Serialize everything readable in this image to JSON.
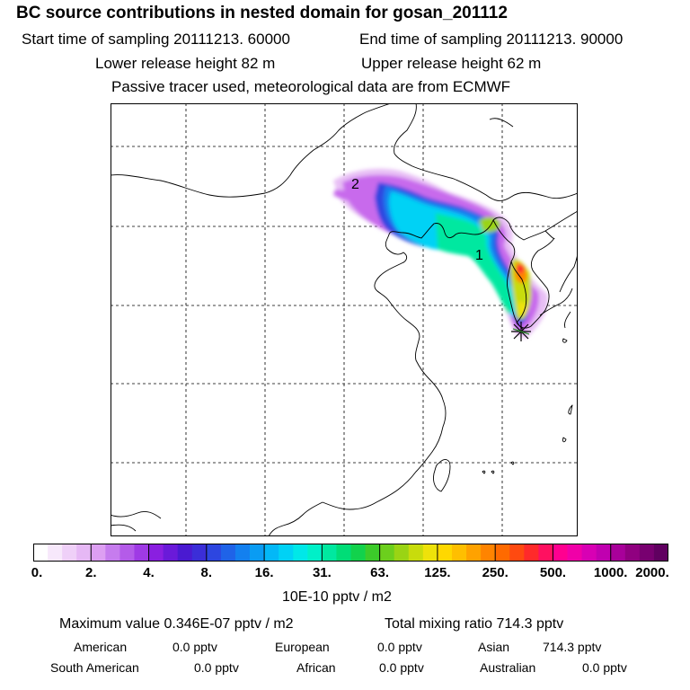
{
  "header": {
    "title": "BC  source contributions in nested domain for gosan_201112",
    "start_time": "Start time of sampling 20111213. 60000",
    "end_time": "End time of sampling 20111213. 90000",
    "lower_release": "Lower release height   82 m",
    "upper_release": "Upper release height   62 m",
    "tracer_note": "Passive tracer used, meteorological data are from ECMWF"
  },
  "map": {
    "labels": [
      "2",
      "1"
    ],
    "receptor_marker": "star-icon"
  },
  "colorbar": {
    "ticks": [
      "0.",
      "2.",
      "4.",
      "8.",
      "16.",
      "31.",
      "63.",
      "125.",
      "250.",
      "500.",
      "1000.",
      "2000."
    ],
    "units": "10E-10 pptv / m2",
    "colors": [
      "#ffffff",
      "#f7e8fb",
      "#efd0f8",
      "#e6b8f5",
      "#dd9ff2",
      "#c67cee",
      "#b45be9",
      "#9f3ae5",
      "#8a1fe0",
      "#6a1ad9",
      "#4a1ad1",
      "#3b2ed8",
      "#2d46e0",
      "#1f63e8",
      "#1380ef",
      "#0a9cf3",
      "#03b8f7",
      "#00d2f5",
      "#00e8e8",
      "#00f0c8",
      "#00e8a0",
      "#00dd77",
      "#12d24c",
      "#3ccb2a",
      "#6ccf1d",
      "#9ad414",
      "#c8dc0c",
      "#eee20a",
      "#ffd800",
      "#ffbf00",
      "#ffa200",
      "#ff8400",
      "#ff6a00",
      "#ff4a10",
      "#ff2a2a",
      "#ff1060",
      "#ff0090",
      "#f000a8",
      "#d800b4",
      "#c000b0",
      "#a8009a",
      "#900080",
      "#780070",
      "#600060"
    ]
  },
  "summary": {
    "maximum_value": "Maximum value  0.346E-07 pptv / m2",
    "total_mixing": "Total mixing ratio      714.3 pptv",
    "rows": [
      [
        {
          "name": "American",
          "value": "0.0 pptv"
        },
        {
          "name": "European",
          "value": "0.0 pptv"
        },
        {
          "name": "Asian",
          "value": "714.3 pptv"
        }
      ],
      [
        {
          "name": "South American",
          "value": "0.0 pptv"
        },
        {
          "name": "African",
          "value": "0.0 pptv"
        },
        {
          "name": "Australian",
          "value": "0.0 pptv"
        }
      ]
    ]
  }
}
